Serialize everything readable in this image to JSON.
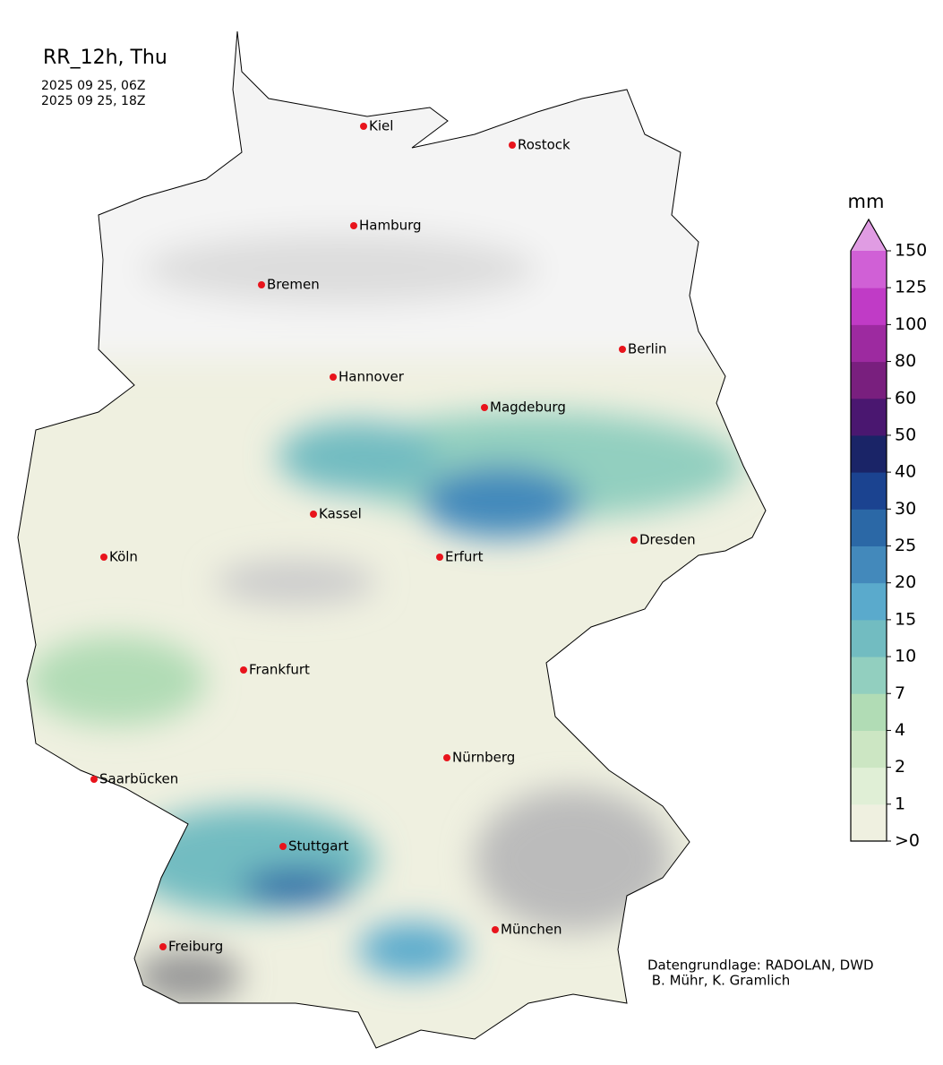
{
  "header": {
    "title": "RR_12h, Thu",
    "times": [
      "2025 09 25, 06Z",
      "2025 09 25, 18Z"
    ]
  },
  "cities": [
    "Kiel",
    "Rostock",
    "Hamburg",
    "Bremen",
    "Berlin",
    "Hannover",
    "Magdeburg",
    "Kassel",
    "Köln",
    "Erfurt",
    "Dresden",
    "Frankfurt",
    "Saarbücken",
    "Nürnberg",
    "Stuttgart",
    "München",
    "Freiburg"
  ],
  "colorbar": {
    "unit": "mm",
    "ticks": [
      {
        "value": 0,
        "label": ">0"
      },
      1,
      2,
      4,
      7,
      10,
      15,
      20,
      25,
      30,
      40,
      50,
      60,
      80,
      100,
      125,
      150
    ],
    "colors": [
      "#eff0e0",
      "#e0efd6",
      "#cce6c3",
      "#b1dcb5",
      "#92cfbf",
      "#72bcc1",
      "#5aaacc",
      "#4389bb",
      "#2b68a6",
      "#1b4390",
      "#1a2467",
      "#4a1770",
      "#791f7e",
      "#9d2aa0",
      "#c03bc6",
      "#d060d6",
      "#e09ce3"
    ]
  },
  "credits": [
    "Datengrundlage: RADOLAN, DWD",
    " B. Mühr, K. Gramlich"
  ]
}
